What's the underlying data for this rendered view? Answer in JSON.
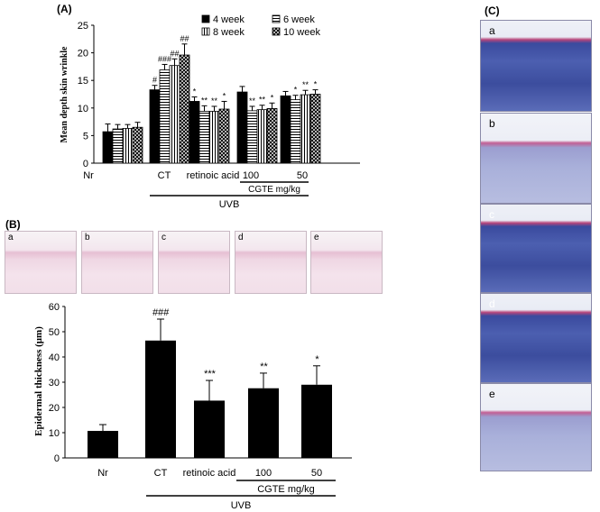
{
  "panels": {
    "a": "(A)",
    "b": "(B)",
    "c": "(C)"
  },
  "chart_data": [
    {
      "type": "bar",
      "ylabel": "Mean depth  skin wrinkle",
      "ylim": [
        0,
        25
      ],
      "yticks": [
        0,
        5,
        10,
        15,
        20,
        25
      ],
      "categories": [
        "Nr",
        "CT",
        "retinoic  acid",
        "100",
        "50"
      ],
      "series": [
        {
          "name": "4 week",
          "values": [
            5.7,
            13.3,
            11.2,
            12.9,
            12.2
          ],
          "errors": [
            1.4,
            0.8,
            0.8,
            1.0,
            0.8
          ]
        },
        {
          "name": "6 week",
          "values": [
            6.2,
            16.9,
            9.4,
            9.5,
            11.5
          ],
          "errors": [
            0.8,
            1.0,
            1.0,
            0.8,
            0.8
          ]
        },
        {
          "name": "8 week",
          "values": [
            6.3,
            17.7,
            9.4,
            9.7,
            12.4
          ],
          "errors": [
            0.7,
            1.2,
            0.9,
            0.8,
            0.8
          ]
        },
        {
          "name": "10 week",
          "values": [
            6.5,
            19.6,
            9.8,
            9.9,
            12.5
          ],
          "errors": [
            0.9,
            2.0,
            1.4,
            1.0,
            0.8
          ]
        }
      ],
      "annotations": [
        [
          "",
          "#",
          "*",
          "",
          ""
        ],
        [
          "",
          "###",
          "**",
          "**",
          "*"
        ],
        [
          "",
          "##",
          "**",
          "**",
          "**"
        ],
        [
          "",
          "##",
          "*",
          "*",
          "*"
        ]
      ],
      "group_labels": {
        "cgte": "CGTE  mg/kg",
        "uvb": "UVB"
      }
    },
    {
      "type": "bar",
      "ylabel": "Epidermal thickness (μm)",
      "ylim": [
        0,
        60
      ],
      "yticks": [
        0,
        10,
        20,
        30,
        40,
        50,
        60
      ],
      "categories": [
        "Nr",
        "CT",
        "retinoic  acid",
        "100",
        "50"
      ],
      "values": [
        10.7,
        46.5,
        22.7,
        27.6,
        29.0
      ],
      "errors": [
        2.5,
        8.5,
        8.0,
        6.0,
        7.5
      ],
      "annotations": [
        "",
        "###",
        "***",
        "**",
        "*"
      ],
      "group_labels": {
        "cgte": "CGTE  mg/kg",
        "uvb": "UVB"
      }
    }
  ],
  "histology_b": [
    "a",
    "b",
    "c",
    "d",
    "e"
  ],
  "histology_c": [
    "a",
    "b",
    "c",
    "d",
    "e"
  ]
}
